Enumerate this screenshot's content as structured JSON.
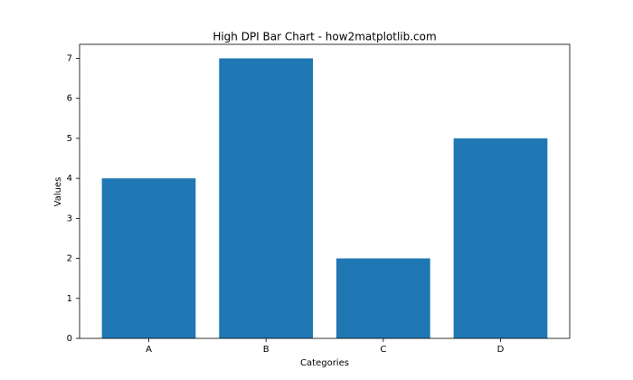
{
  "chart_data": {
    "type": "bar",
    "title": "High DPI Bar Chart - how2matplotlib.com",
    "x_label": "Categories",
    "y_label": "Values",
    "categories": [
      "A",
      "B",
      "C",
      "D"
    ],
    "values": [
      4,
      7,
      2,
      5
    ],
    "color": "#1f77b4",
    "ylim": [
      0,
      7.35
    ],
    "yticks": [
      0,
      1,
      2,
      3,
      4,
      5,
      6,
      7
    ],
    "grid": false
  }
}
